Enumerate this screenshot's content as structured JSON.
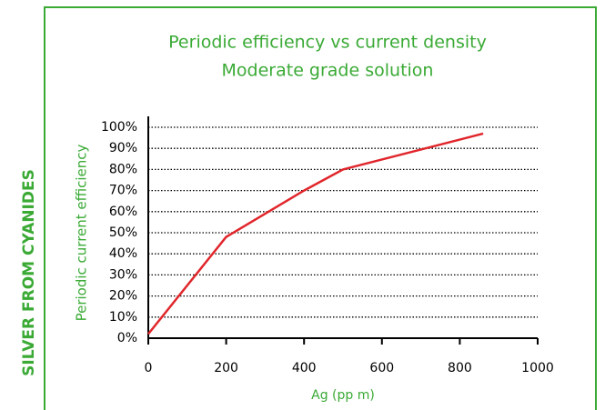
{
  "chart_data": {
    "type": "line",
    "side_label": "SILVER FROM CYANIDES",
    "title": "Periodic efficiency vs current density",
    "subtitle": "Moderate grade solution",
    "x_label": "Ag (pp m)",
    "y_label": "Periodic current efficiency",
    "x": [
      0,
      200,
      400,
      500,
      860
    ],
    "series": [
      {
        "name": "Periodic current efficiency",
        "color": "#e0262b",
        "values": [
          2,
          48,
          70,
          80,
          97
        ]
      }
    ],
    "xlim": [
      0,
      1000
    ],
    "xticks": [
      0,
      200,
      400,
      600,
      800,
      1000
    ],
    "ylim": [
      0,
      100
    ],
    "yticks": [
      {
        "value": 0,
        "label": "0%"
      },
      {
        "value": 10,
        "label": "10%"
      },
      {
        "value": 20,
        "label": "20%"
      },
      {
        "value": 30,
        "label": "30%"
      },
      {
        "value": 40,
        "label": "40%"
      },
      {
        "value": 50,
        "label": "50%"
      },
      {
        "value": 60,
        "label": "60%"
      },
      {
        "value": 70,
        "label": "70%"
      },
      {
        "value": 80,
        "label": "80%"
      },
      {
        "value": 90,
        "label": "90%"
      },
      {
        "value": 100,
        "label": "100%"
      }
    ],
    "grid": true
  }
}
